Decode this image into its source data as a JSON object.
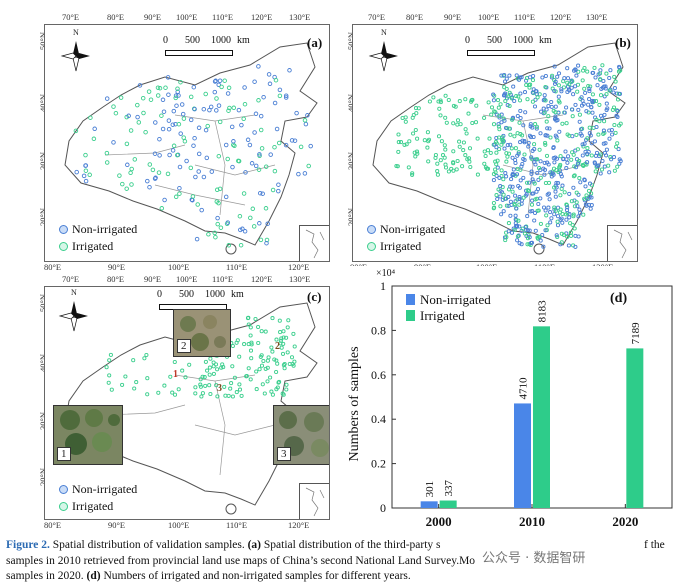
{
  "maps": {
    "top_lon_ticks": [
      "70°E",
      "80°E",
      "90°E",
      "100°E",
      "110°E",
      "120°E",
      "130°E"
    ],
    "bottom_lon_ticks": [
      "80°E",
      "90°E",
      "100°E",
      "110°E",
      "120°E"
    ],
    "lat_ticks": [
      "50°N",
      "40°N",
      "30°N",
      "20°N"
    ],
    "scale_labels": [
      "0",
      "500",
      "1000",
      "km"
    ],
    "compass_north": "N",
    "panels": [
      {
        "label": "(a)"
      },
      {
        "label": "(b)"
      },
      {
        "label": "(c)"
      }
    ],
    "legend": {
      "non_irrigated": "Non-irrigated",
      "irrigated": "Irrigated"
    },
    "photo_labels": [
      "1",
      "2",
      "3"
    ],
    "colors": {
      "non_irrigated": "#4a7fd4",
      "irrigated": "#3ccf8e",
      "boundary": "#555555"
    }
  },
  "chart_data": {
    "type": "bar",
    "label": "(d)",
    "categories": [
      "2000",
      "2010",
      "2020"
    ],
    "exponent_label": "×10⁴",
    "ylabel": "Numbers of samples",
    "yticks": [
      "0",
      "0.2",
      "0.4",
      "0.6",
      "0.8",
      "1"
    ],
    "ylim": [
      0,
      10000
    ],
    "series": [
      {
        "name": "Non-irrigated",
        "color": "#4a86e8",
        "values": [
          301,
          4710,
          null
        ]
      },
      {
        "name": "Irrigated",
        "color": "#2ecc8a",
        "values": [
          337,
          8183,
          7189
        ]
      }
    ],
    "data_labels": [
      [
        "301",
        "4710",
        ""
      ],
      [
        "337",
        "8183",
        "7189"
      ]
    ],
    "legend_position": "top-left"
  },
  "caption": {
    "figure_label": "Figure 2.",
    "line1": " Spatial distribution of validation samples. ",
    "a_label": "(a)",
    "line1b": " Spatial distribution of the third-party s",
    "line1c": "f the",
    "line2": "samples in 2010 retrieved from provincial land use maps of China’s second National Land Survey.",
    "line2b": "Mo",
    "line3a": "samples in 2020. ",
    "d_label": "(d)",
    "line3b": " Numbers of irrigated and non-irrigated samples for different years."
  },
  "watermark": "公众号 · 数据智研"
}
